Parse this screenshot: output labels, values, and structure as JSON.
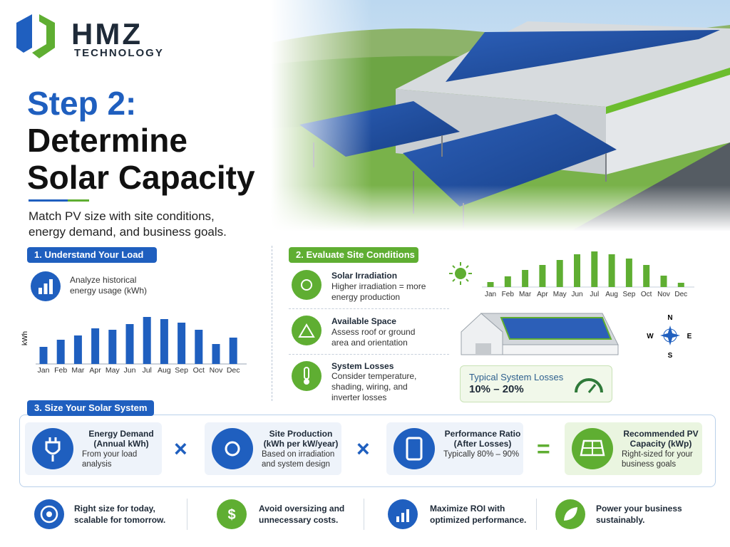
{
  "header": {
    "brand": "HMZ",
    "brand_sub": "TECHNOLOGY",
    "title_step": "Step 2:",
    "title_line1": "Determine",
    "title_line2": "Solar Capacity",
    "subtitle": "Match PV size with site conditions, energy demand, and business goals."
  },
  "load": {
    "heading": "1. Understand Your Load",
    "description": "Analyze historical energy usage (kWh)"
  },
  "site": {
    "heading": "2. Evaluate Site Conditions",
    "items": [
      {
        "title": "Solar Irradiation",
        "text": "Higher irradiation = more energy production"
      },
      {
        "title": "Available Space",
        "text": "Assess roof or ground area and orientation"
      },
      {
        "title": "System Losses",
        "text": "Consider temperature, shading, wiring, and inverter losses"
      }
    ],
    "compass": {
      "n": "N",
      "e": "E",
      "s": "S",
      "w": "W"
    },
    "losses_label": "Typical System Losses",
    "losses_value": "10% – 20%"
  },
  "sizing": {
    "heading": "3. Size Your Solar System",
    "factors": [
      {
        "title": "Energy Demand (Annual kWh)",
        "text": "From your load analysis"
      },
      {
        "title": "Site Production (kWh per kW/year)",
        "text": "Based on irradiation and system design"
      },
      {
        "title": "Performance Ratio (After Losses)",
        "text": "Typically 80% – 90%"
      },
      {
        "title": "Recommended PV Capacity (kWp)",
        "text": "Right-sized for your business goals"
      }
    ],
    "operators": [
      "×",
      "×",
      "="
    ]
  },
  "benefits": [
    "Right size for today, scalable for tomorrow.",
    "Avoid oversizing and unnecessary costs.",
    "Maximize ROI with optimized performance.",
    "Power your business sustainably."
  ],
  "chart_data": [
    {
      "type": "bar",
      "y_label": "kWh",
      "categories": [
        "Jan",
        "Feb",
        "Mar",
        "Apr",
        "May",
        "Jun",
        "Jul",
        "Aug",
        "Sep",
        "Oct",
        "Nov",
        "Dec"
      ],
      "values": [
        24,
        34,
        40,
        50,
        48,
        56,
        66,
        63,
        58,
        48,
        28,
        37
      ],
      "color": "#1f5fbf"
    },
    {
      "type": "bar",
      "categories": [
        "Jan",
        "Feb",
        "Mar",
        "Apr",
        "May",
        "Jun",
        "Jul",
        "Aug",
        "Sep",
        "Oct",
        "Nov",
        "Dec"
      ],
      "values": [
        7,
        15,
        24,
        31,
        38,
        46,
        50,
        46,
        40,
        31,
        16,
        6
      ],
      "color": "#5fae32"
    }
  ]
}
